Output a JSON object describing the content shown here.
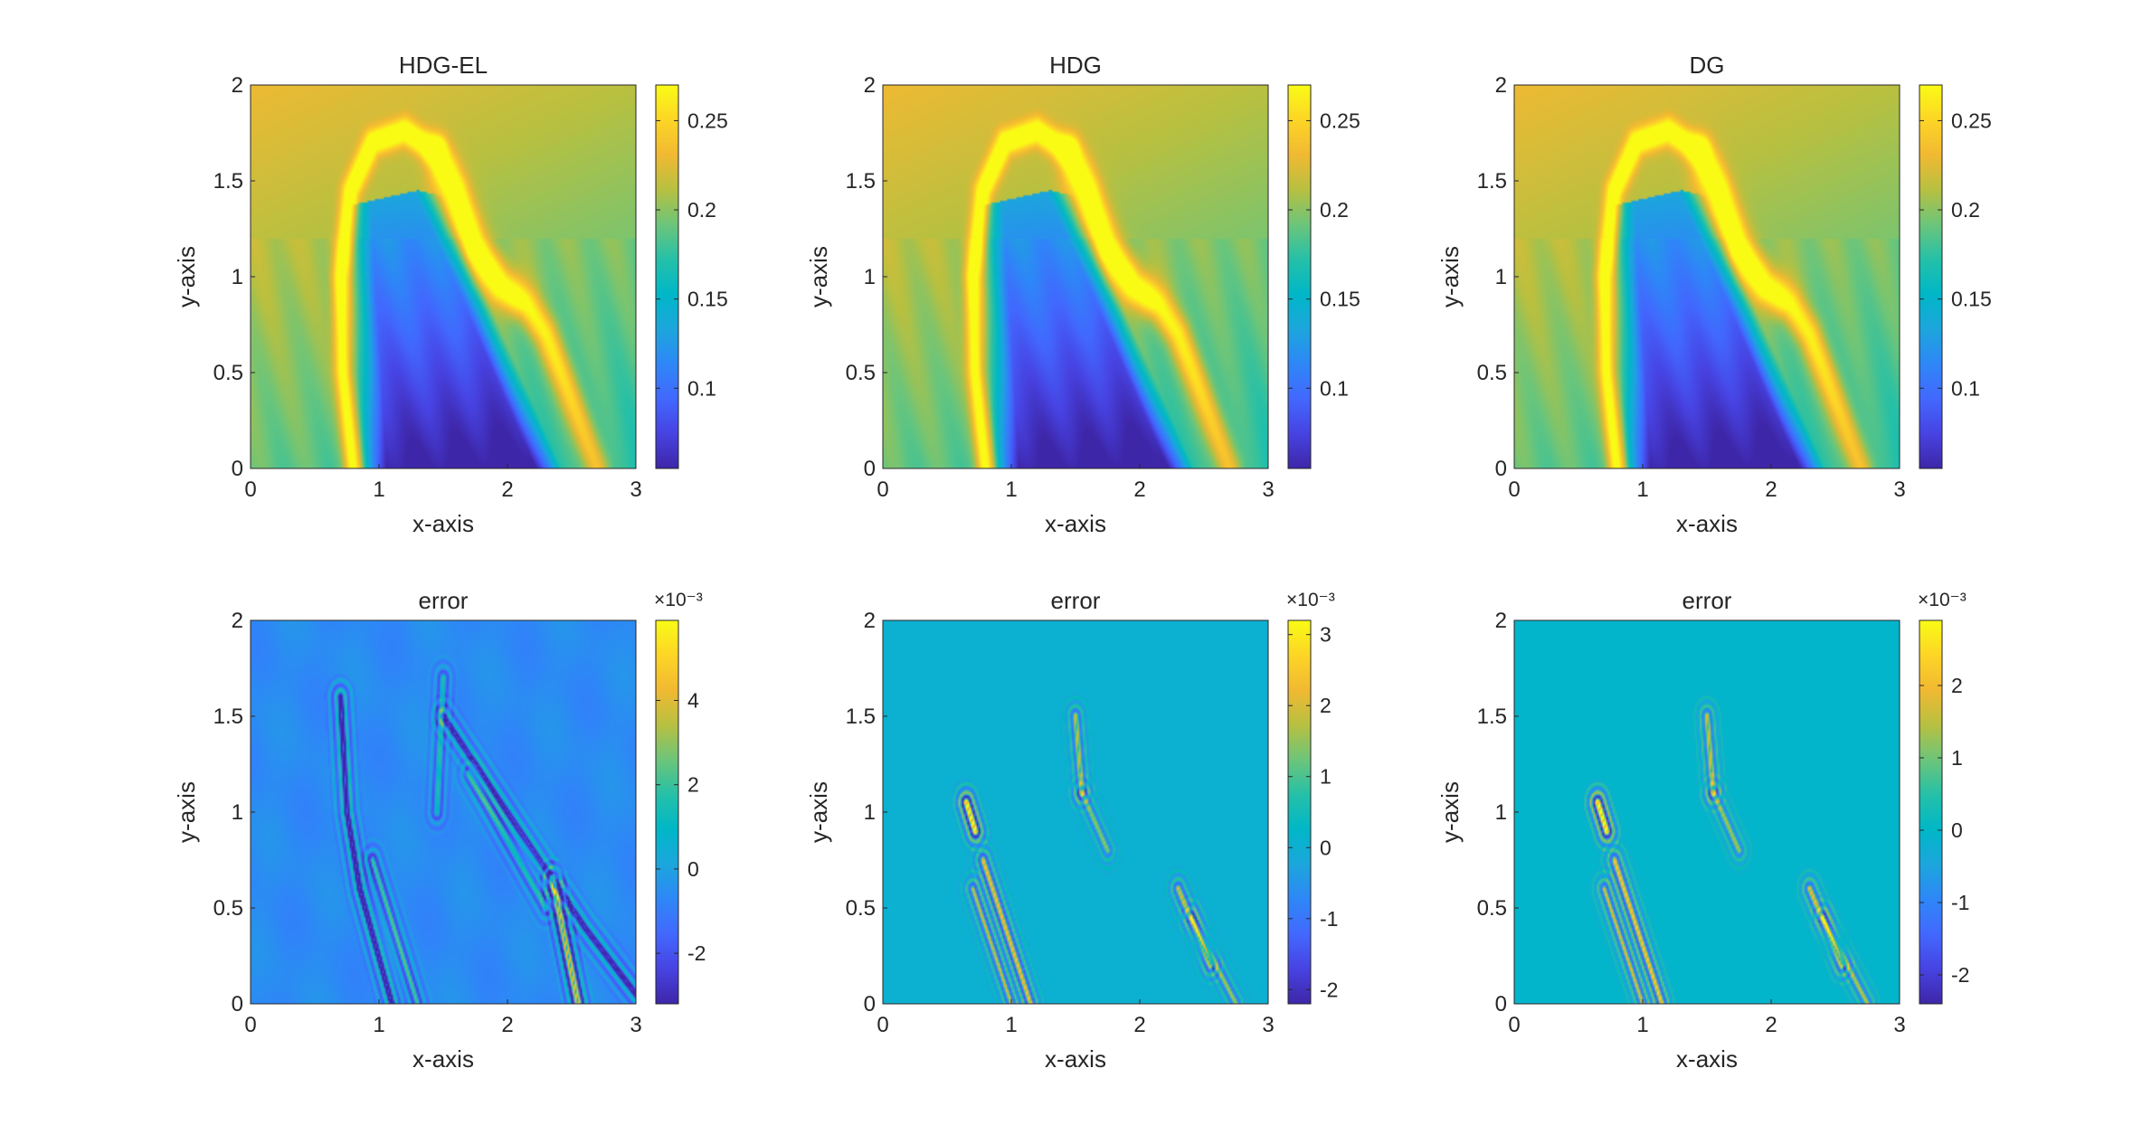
{
  "figure": {
    "colormap": [
      "#3e26a8",
      "#4743e2",
      "#4268fe",
      "#2e87f7",
      "#1ca6dc",
      "#00b7c7",
      "#25c0a8",
      "#6cc57a",
      "#b7c041",
      "#f1b932",
      "#fdd526",
      "#f9fb15"
    ]
  },
  "chart_data": [
    {
      "type": "heatmap",
      "title": "HDG-EL",
      "xlabel": "x-axis",
      "ylabel": "y-axis",
      "xlim": [
        0,
        3
      ],
      "ylim": [
        0,
        2
      ],
      "xticks": [
        "0",
        "1",
        "2",
        "3"
      ],
      "yticks": [
        "0",
        "0.5",
        "1",
        "1.5",
        "2"
      ],
      "field": "solution",
      "colorbar": {
        "range": [
          0.055,
          0.27
        ],
        "ticks": [
          "0.1",
          "0.15",
          "0.2",
          "0.25"
        ],
        "tick_values": [
          0.1,
          0.15,
          0.2,
          0.25
        ],
        "multiplier": ""
      }
    },
    {
      "type": "heatmap",
      "title": "HDG",
      "xlabel": "x-axis",
      "ylabel": "y-axis",
      "xlim": [
        0,
        3
      ],
      "ylim": [
        0,
        2
      ],
      "xticks": [
        "0",
        "1",
        "2",
        "3"
      ],
      "yticks": [
        "0",
        "0.5",
        "1",
        "1.5",
        "2"
      ],
      "field": "solution",
      "colorbar": {
        "range": [
          0.055,
          0.27
        ],
        "ticks": [
          "0.1",
          "0.15",
          "0.2",
          "0.25"
        ],
        "tick_values": [
          0.1,
          0.15,
          0.2,
          0.25
        ],
        "multiplier": ""
      }
    },
    {
      "type": "heatmap",
      "title": "DG",
      "xlabel": "x-axis",
      "ylabel": "y-axis",
      "xlim": [
        0,
        3
      ],
      "ylim": [
        0,
        2
      ],
      "xticks": [
        "0",
        "1",
        "2",
        "3"
      ],
      "yticks": [
        "0",
        "0.5",
        "1",
        "1.5",
        "2"
      ],
      "field": "solution",
      "colorbar": {
        "range": [
          0.055,
          0.27
        ],
        "ticks": [
          "0.1",
          "0.15",
          "0.2",
          "0.25"
        ],
        "tick_values": [
          0.1,
          0.15,
          0.2,
          0.25
        ],
        "multiplier": ""
      }
    },
    {
      "type": "heatmap",
      "title": "error",
      "xlabel": "x-axis",
      "ylabel": "y-axis",
      "xlim": [
        0,
        3
      ],
      "ylim": [
        0,
        2
      ],
      "xticks": [
        "0",
        "1",
        "2",
        "3"
      ],
      "yticks": [
        "0",
        "0.5",
        "1",
        "1.5",
        "2"
      ],
      "field": "error_el",
      "colorbar": {
        "range": [
          -3.2,
          5.9
        ],
        "ticks": [
          "-2",
          "0",
          "2",
          "4"
        ],
        "tick_values": [
          -2,
          0,
          2,
          4
        ],
        "multiplier": "×10⁻³"
      }
    },
    {
      "type": "heatmap",
      "title": "error",
      "xlabel": "x-axis",
      "ylabel": "y-axis",
      "xlim": [
        0,
        3
      ],
      "ylim": [
        0,
        2
      ],
      "xticks": [
        "0",
        "1",
        "2",
        "3"
      ],
      "yticks": [
        "0",
        "0.5",
        "1",
        "1.5",
        "2"
      ],
      "field": "error_hdg",
      "colorbar": {
        "range": [
          -2.2,
          3.2
        ],
        "ticks": [
          "-2",
          "-1",
          "0",
          "1",
          "2",
          "3"
        ],
        "tick_values": [
          -2,
          -1,
          0,
          1,
          2,
          3
        ],
        "multiplier": "×10⁻³"
      }
    },
    {
      "type": "heatmap",
      "title": "error",
      "xlabel": "x-axis",
      "ylabel": "y-axis",
      "xlim": [
        0,
        3
      ],
      "ylim": [
        0,
        2
      ],
      "xticks": [
        "0",
        "1",
        "2",
        "3"
      ],
      "yticks": [
        "0",
        "0.5",
        "1",
        "1.5",
        "2"
      ],
      "field": "error_dg",
      "colorbar": {
        "range": [
          -2.4,
          2.9
        ],
        "ticks": [
          "-2",
          "-1",
          "0",
          "1",
          "2"
        ],
        "tick_values": [
          -2,
          -1,
          0,
          1,
          2
        ],
        "multiplier": "×10⁻³"
      }
    }
  ]
}
